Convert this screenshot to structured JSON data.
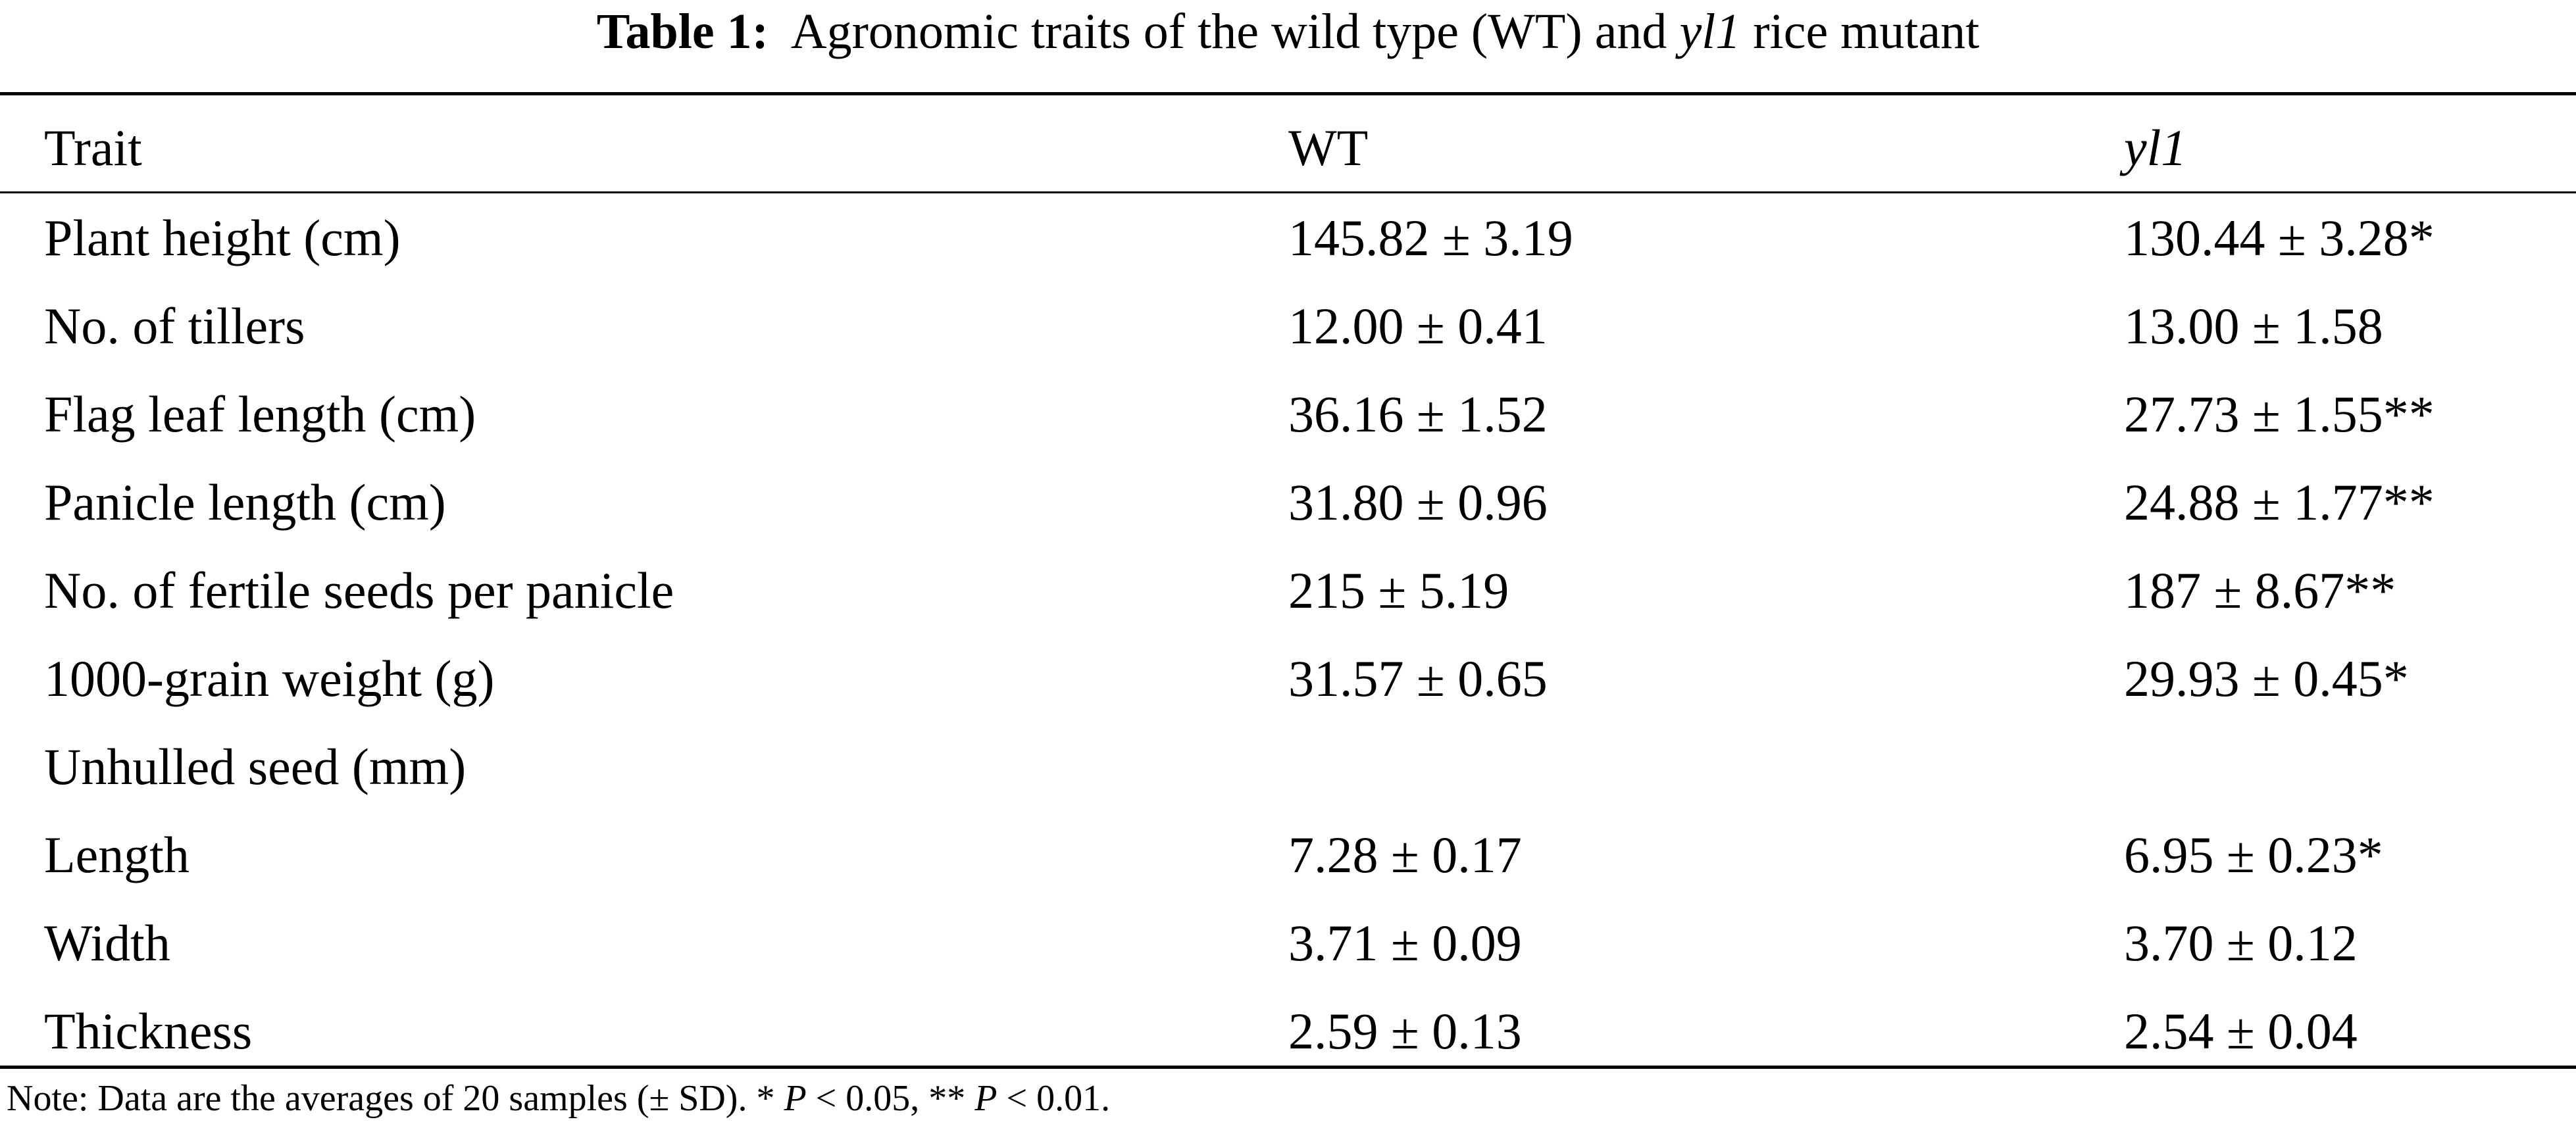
{
  "title": {
    "label": "Table 1:",
    "text_before": "Agronomic traits of the wild type (WT) and",
    "italic": "yl1",
    "text_after": "rice mutant"
  },
  "table": {
    "header": [
      "Trait",
      "WT",
      "yl1"
    ],
    "rows": [
      [
        "Plant height (cm)",
        "145.82 ± 3.19",
        "130.44 ± 3.28*"
      ],
      [
        "No. of tillers",
        "12.00 ± 0.41",
        "13.00 ± 1.58"
      ],
      [
        "Flag leaf length (cm)",
        "36.16 ± 1.52",
        "27.73 ± 1.55**"
      ],
      [
        "Panicle length (cm)",
        "31.80 ± 0.96",
        "24.88 ± 1.77**"
      ],
      [
        "No. of fertile seeds per panicle",
        "215 ± 5.19",
        "187 ± 8.67**"
      ],
      [
        "1000-grain weight (g)",
        "31.57 ± 0.65",
        "29.93 ± 0.45*"
      ],
      [
        "Unhulled seed (mm)"
      ],
      [
        "Length",
        "7.28 ± 0.17",
        "6.95 ± 0.23*"
      ],
      [
        "Width",
        "3.71 ± 0.09",
        "3.70 ± 0.12"
      ],
      [
        "Thickness",
        "2.59 ± 0.13",
        "2.54 ± 0.04"
      ]
    ]
  },
  "note": [
    "Note: Data are the averages of 20 samples (± SD). *",
    "P",
    "< 0.05, **",
    "P",
    "< 0.01."
  ]
}
